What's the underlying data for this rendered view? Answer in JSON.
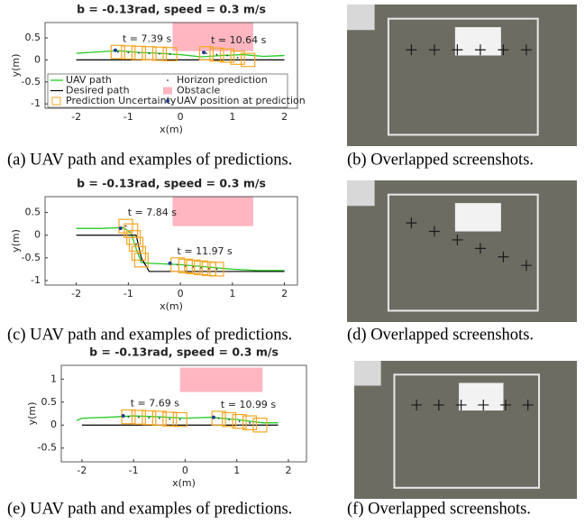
{
  "chart_data": [
    {
      "type": "line",
      "title": "b = -0.13rad, speed = 0.3 m/s",
      "x_label": "x(m)",
      "y_label": "y(m)",
      "xlim": [
        -2.6,
        2.25
      ],
      "ylim": [
        -1.1,
        0.85
      ],
      "xticks": [
        -2,
        -1,
        0,
        1,
        2
      ],
      "yticks": [
        -1,
        -0.5,
        0,
        0.5
      ],
      "series": [
        {
          "name": "UAV path",
          "color": "#22cc22",
          "x": [
            -2,
            -1.6,
            -1.2,
            -0.8,
            -0.4,
            0,
            0.4,
            0.8,
            1.2,
            1.6,
            2
          ],
          "values": [
            0.15,
            0.18,
            0.21,
            0.17,
            0.15,
            0.12,
            0.07,
            0.1,
            0.12,
            0.08,
            0.1
          ]
        },
        {
          "name": "Desired path",
          "color": "#000000",
          "x": [
            -2,
            2
          ],
          "values": [
            0,
            0
          ]
        }
      ],
      "obstacle": {
        "name": "Obstacle",
        "color": "#ffb6c1",
        "x": [
          -0.15,
          1.4
        ],
        "y": [
          0.2,
          0.85
        ]
      },
      "prediction_style": {
        "box_name": "Prediction Uncertainty",
        "box_color": "#f5a623",
        "dot_name": "Horizon prediction",
        "position_name": "UAV position at prediction",
        "position_color": "#1f3a93",
        "box_w": 0.26,
        "box_h": 0.3
      },
      "predictions": [
        {
          "label": "t = 7.39 s",
          "position": [
            -1.25,
            0.22
          ],
          "x": [
            -1.2,
            -1,
            -0.8,
            -0.6,
            -0.4,
            -0.2
          ],
          "y": [
            0.18,
            0.17,
            0.16,
            0.15,
            0.14,
            0.13
          ]
        },
        {
          "label": "t = 10.64 s",
          "position": [
            0.45,
            0.17
          ],
          "x": [
            0.5,
            0.7,
            0.9,
            1.1,
            1.3
          ],
          "y": [
            0.15,
            0.12,
            0.1,
            0.05,
            0
          ]
        }
      ]
    },
    {
      "type": "line",
      "title": "b = -0.13rad, speed = 0.3 m/s",
      "x_label": "x(m)",
      "y_label": "y(m)",
      "xlim": [
        -2.6,
        2.25
      ],
      "ylim": [
        -1.1,
        0.85
      ],
      "xticks": [
        -2,
        -1,
        0,
        1,
        2
      ],
      "yticks": [
        -1,
        -0.5,
        0,
        0.5
      ],
      "series": [
        {
          "color": "#22cc22",
          "x": [
            -2,
            -1.5,
            -1.1,
            -0.95,
            -0.85,
            -0.75,
            -0.6,
            0,
            0.5,
            1,
            1.5,
            2
          ],
          "values": [
            0.15,
            0.15,
            0.17,
            0.05,
            -0.3,
            -0.6,
            -0.62,
            -0.65,
            -0.7,
            -0.75,
            -0.78,
            -0.78
          ]
        },
        {
          "color": "#000000",
          "x": [
            -2,
            -0.85,
            -0.75,
            -0.6,
            2
          ],
          "values": [
            0,
            0,
            -0.5,
            -0.8,
            -0.8
          ]
        }
      ],
      "obstacle": {
        "color": "#ffb6c1",
        "x": [
          -0.15,
          1.4
        ],
        "y": [
          0.2,
          0.85
        ]
      },
      "prediction_style": {
        "box_color": "#f5a623",
        "position_color": "#1f3a93",
        "box_w": 0.26,
        "box_h": 0.3
      },
      "predictions": [
        {
          "label": "t = 7.84 s",
          "position": [
            -1.15,
            0.15
          ],
          "x": [
            -1.05,
            -0.95,
            -0.9,
            -0.85,
            -0.8,
            -0.75
          ],
          "y": [
            0.2,
            0.1,
            -0.05,
            -0.2,
            -0.4,
            -0.55
          ]
        },
        {
          "label": "t = 11.97 s",
          "position": [
            -0.2,
            -0.62
          ],
          "x": [
            -0.05,
            0.1,
            0.25,
            0.4,
            0.55,
            0.7
          ],
          "y": [
            -0.65,
            -0.68,
            -0.7,
            -0.72,
            -0.74,
            -0.75
          ]
        }
      ]
    },
    {
      "type": "line",
      "title": "b = -0.13rad, speed = 0.3 m/s",
      "x_label": "x(m)",
      "y_label": "y(m)",
      "xlim": [
        -2.4,
        2.35
      ],
      "ylim": [
        -0.8,
        1.3
      ],
      "xticks": [
        -2,
        -1,
        0,
        1,
        2
      ],
      "yticks": [
        -0.5,
        0,
        0.5,
        1
      ],
      "series": [
        {
          "color": "#22cc22",
          "x": [
            -2.1,
            -2,
            -1.5,
            -1,
            -0.5,
            0,
            0.5,
            1,
            1.5,
            1.8
          ],
          "values": [
            0.1,
            0.15,
            0.17,
            0.2,
            0.18,
            0.15,
            0.17,
            0.12,
            0.05,
            0.05
          ]
        },
        {
          "color": "#000000",
          "x": [
            -2,
            1.8
          ],
          "values": [
            0,
            0
          ]
        }
      ],
      "obstacle": {
        "color": "#ffb6c1",
        "x": [
          -0.1,
          1.5
        ],
        "y": [
          0.72,
          1.25
        ]
      },
      "prediction_style": {
        "box_color": "#f5a623",
        "position_color": "#1f3a93",
        "box_w": 0.26,
        "box_h": 0.3
      },
      "predictions": [
        {
          "label": "t = 7.69 s",
          "position": [
            -1.2,
            0.2
          ],
          "x": [
            -1.1,
            -0.9,
            -0.7,
            -0.5,
            -0.3,
            -0.1
          ],
          "y": [
            0.18,
            0.17,
            0.16,
            0.15,
            0.13,
            0.12
          ]
        },
        {
          "label": "t = 10.99 s",
          "position": [
            0.55,
            0.17
          ],
          "x": [
            0.65,
            0.85,
            1.05,
            1.25,
            1.45
          ],
          "y": [
            0.15,
            0.12,
            0.08,
            0.05,
            0
          ]
        }
      ]
    }
  ],
  "captions": [
    "(a) UAV path and examples of predictions.",
    "(b) Overlapped screenshots.",
    "(c) UAV path and examples of predictions.",
    "(d) Overlapped screenshots.",
    "(e) UAV path and examples of predictions.",
    "(f) Overlapped screenshots."
  ]
}
